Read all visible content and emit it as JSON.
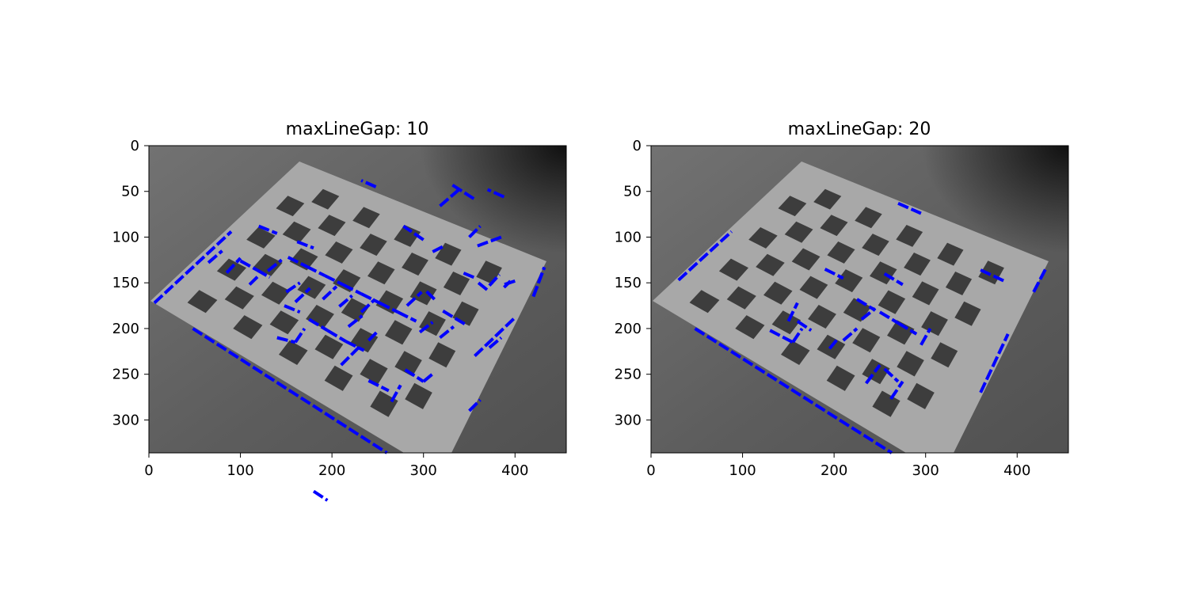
{
  "chart_data": [
    {
      "type": "image",
      "title": "maxLineGap: 10",
      "xlim": [
        0,
        456
      ],
      "ylim": [
        336,
        0
      ],
      "xticks": [
        0,
        100,
        200,
        300,
        400
      ],
      "yticks": [
        0,
        50,
        100,
        150,
        200,
        250,
        300
      ],
      "line_color": "#0000ff",
      "segments": [
        [
          6,
          172,
          90,
          94
        ],
        [
          48,
          200,
          260,
          336
        ],
        [
          318,
          66,
          340,
          47
        ],
        [
          372,
          221,
          385,
          210
        ],
        [
          356,
          230,
          400,
          188
        ],
        [
          350,
          290,
          362,
          278
        ],
        [
          420,
          165,
          432,
          133
        ],
        [
          345,
          195,
          320,
          180
        ],
        [
          385,
          100,
          358,
          110
        ],
        [
          360,
          150,
          370,
          158
        ],
        [
          372,
          153,
          383,
          141
        ],
        [
          400,
          148,
          388,
          152
        ],
        [
          388,
          155,
          395,
          148
        ],
        [
          180,
          378,
          195,
          388
        ],
        [
          248,
          45,
          232,
          38
        ],
        [
          350,
          100,
          362,
          88
        ],
        [
          355,
          58,
          330,
          42
        ],
        [
          420,
          165,
          432,
          133
        ],
        [
          300,
          103,
          278,
          88
        ],
        [
          310,
          116,
          322,
          110
        ],
        [
          355,
          144,
          343,
          139
        ],
        [
          312,
          168,
          302,
          158
        ],
        [
          388,
          56,
          370,
          48
        ],
        [
          208,
          176,
          222,
          164
        ],
        [
          160,
          171,
          176,
          156
        ],
        [
          218,
          198,
          233,
          186
        ],
        [
          240,
          213,
          250,
          203
        ],
        [
          65,
          128,
          80,
          115
        ],
        [
          85,
          139,
          100,
          123
        ],
        [
          110,
          152,
          120,
          142
        ],
        [
          130,
          137,
          145,
          125
        ],
        [
          150,
          160,
          165,
          150
        ],
        [
          190,
          168,
          205,
          154
        ],
        [
          232,
          182,
          247,
          168
        ],
        [
          282,
          175,
          298,
          160
        ],
        [
          296,
          204,
          310,
          193
        ],
        [
          318,
          210,
          333,
          198
        ],
        [
          140,
          210,
          160,
          215
        ],
        [
          160,
          215,
          170,
          200
        ],
        [
          210,
          240,
          230,
          220
        ],
        [
          240,
          257,
          262,
          268
        ],
        [
          265,
          280,
          275,
          262
        ],
        [
          280,
          245,
          300,
          258
        ],
        [
          300,
          258,
          312,
          248
        ],
        [
          100,
          126,
          118,
          136
        ],
        [
          118,
          136,
          132,
          144
        ],
        [
          152,
          122,
          172,
          132
        ],
        [
          172,
          132,
          192,
          142
        ],
        [
          192,
          142,
          212,
          152
        ],
        [
          212,
          152,
          232,
          162
        ],
        [
          232,
          162,
          252,
          172
        ],
        [
          252,
          172,
          272,
          182
        ],
        [
          272,
          182,
          292,
          192
        ],
        [
          175,
          190,
          195,
          202
        ],
        [
          195,
          202,
          215,
          214
        ],
        [
          215,
          214,
          235,
          224
        ],
        [
          148,
          175,
          165,
          182
        ],
        [
          162,
          105,
          180,
          112
        ],
        [
          120,
          88,
          140,
          96
        ]
      ]
    },
    {
      "type": "image",
      "title": "maxLineGap: 20",
      "xlim": [
        0,
        456
      ],
      "ylim": [
        336,
        0
      ],
      "xticks": [
        0,
        100,
        200,
        300,
        400
      ],
      "yticks": [
        0,
        50,
        100,
        150,
        200,
        250,
        300
      ],
      "line_color": "#0000ff",
      "segments": [
        [
          30,
          147,
          88,
          94
        ],
        [
          48,
          200,
          263,
          336
        ],
        [
          360,
          270,
          390,
          206
        ],
        [
          418,
          160,
          432,
          133
        ],
        [
          270,
          63,
          295,
          74
        ],
        [
          360,
          136,
          388,
          149
        ],
        [
          130,
          202,
          155,
          215
        ],
        [
          155,
          215,
          165,
          200
        ],
        [
          150,
          192,
          160,
          172
        ],
        [
          160,
          192,
          175,
          202
        ],
        [
          190,
          135,
          210,
          145
        ],
        [
          195,
          222,
          205,
          210
        ],
        [
          210,
          213,
          225,
          200
        ],
        [
          230,
          190,
          245,
          178
        ],
        [
          235,
          260,
          250,
          240
        ],
        [
          255,
          244,
          270,
          258
        ],
        [
          262,
          277,
          275,
          258
        ],
        [
          295,
          218,
          305,
          200
        ],
        [
          255,
          140,
          275,
          152
        ],
        [
          225,
          168,
          245,
          180
        ],
        [
          250,
          182,
          270,
          194
        ],
        [
          270,
          194,
          290,
          206
        ]
      ]
    }
  ]
}
